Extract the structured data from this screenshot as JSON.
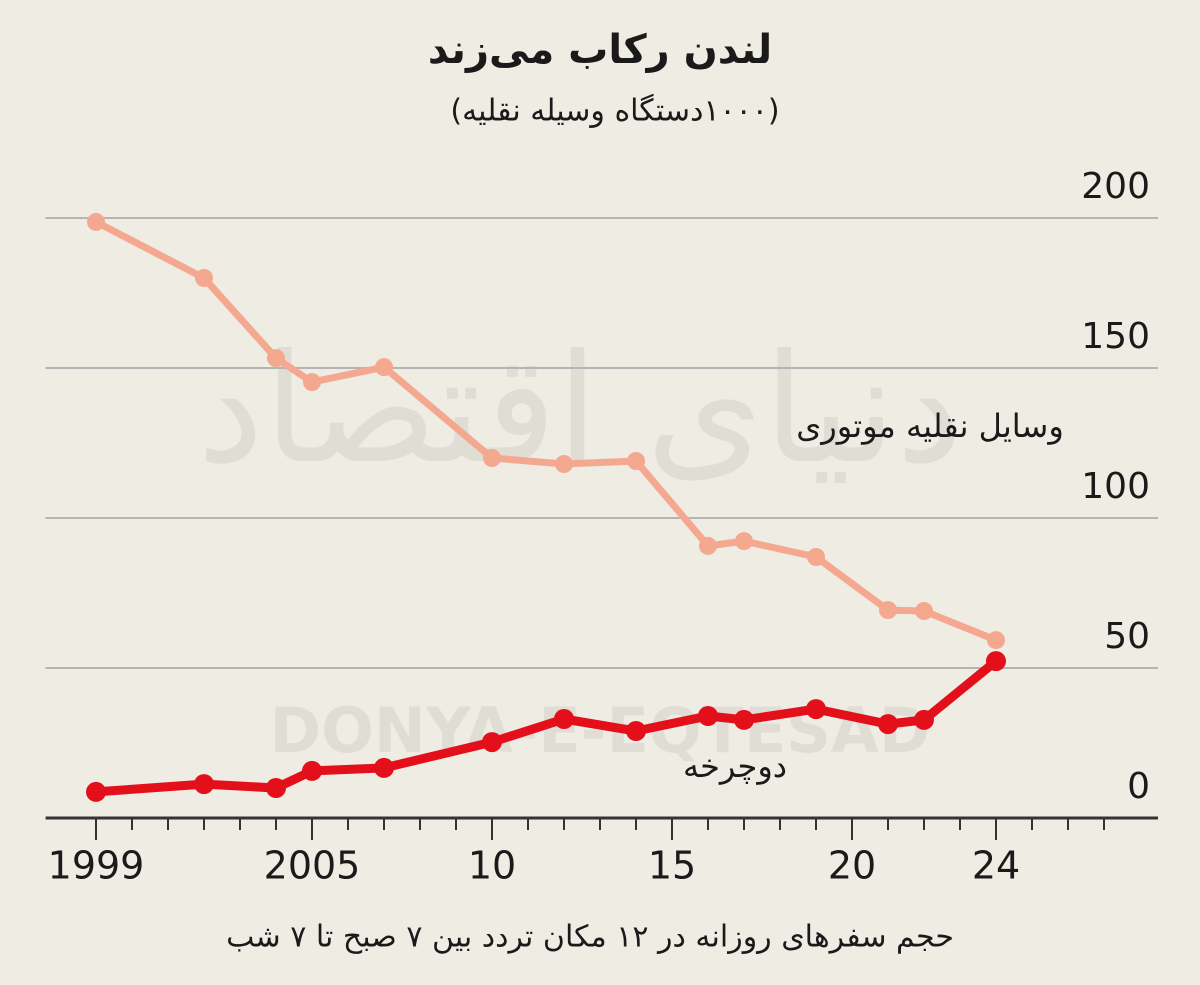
{
  "chart_data": {
    "type": "line",
    "title": "لندن رکاب می‌زند",
    "subtitle": "(۱۰۰۰دستگاه وسیله نقلیه)",
    "footnote": "حجم سفرهای روزانه در ۱۲ مکان تردد بین ۷ صبح تا ۷ شب",
    "watermark": [
      "دنیای اقتصاد",
      "DONYA-E-EQTESAD"
    ],
    "x": [
      1999,
      2002,
      2004,
      2005,
      2007,
      2010,
      2012,
      2014,
      2016,
      2017,
      2019,
      2021,
      2022,
      2024
    ],
    "series": [
      {
        "name": "وسایل نقلیه موتوری",
        "color": "#f4a88f",
        "values": [
          198.7,
          180,
          153.3,
          145.3,
          150.3,
          120,
          118,
          119,
          90.7,
          92.3,
          87,
          69.3,
          69,
          59.3
        ]
      },
      {
        "name": "دوچرخه",
        "color": "#e3101b",
        "values": [
          8.7,
          11.3,
          10,
          15.7,
          16.7,
          25.3,
          33,
          29,
          34,
          32.7,
          36.3,
          31.3,
          32.7,
          52.3
        ]
      }
    ],
    "xlim": [
      1997.6,
      2028.5
    ],
    "xticks": [
      1999,
      2005,
      {
        "value": 2010,
        "label": "10"
      },
      {
        "value": 2015,
        "label": "15"
      },
      {
        "value": 2020,
        "label": "20"
      },
      {
        "value": 2024,
        "label": "24"
      }
    ],
    "xminorticks": [
      1999,
      2000,
      2001,
      2002,
      2003,
      2004,
      2005,
      2006,
      2007,
      2008,
      2009,
      2010,
      2011,
      2012,
      2013,
      2014,
      2015,
      2016,
      2017,
      2018,
      2019,
      2020,
      2021,
      2022,
      2023,
      2024,
      2025,
      2026,
      2027
    ],
    "ylim": [
      0,
      205
    ],
    "yticks": [
      0,
      50,
      100,
      150,
      200
    ],
    "grid": true
  }
}
